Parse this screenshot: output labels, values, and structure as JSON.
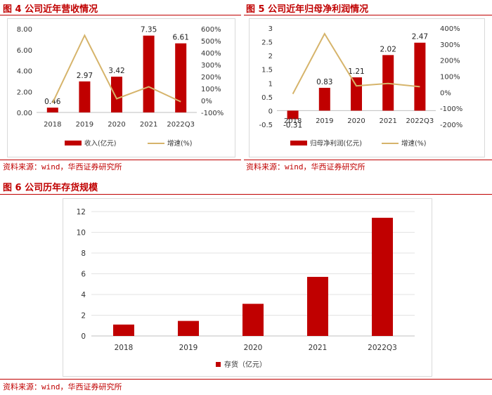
{
  "figures": [
    {
      "title": "图 4 公司近年营收情况",
      "source": "资料来源：wind，华西证券研究所"
    },
    {
      "title": "图 5 公司近年归母净利润情况",
      "source": "资料来源：wind，华西证券研究所"
    },
    {
      "title": "图 6 公司历年存货规模",
      "source": "资料来源：wind，华西证券研究所"
    }
  ],
  "colors": {
    "bar": "#c00000",
    "line": "#d6b46b",
    "accent": "#c00000"
  },
  "chart_data": [
    {
      "type": "bar",
      "categories": [
        "2018",
        "2019",
        "2020",
        "2021",
        "2022Q3"
      ],
      "series": [
        {
          "name": "收入(亿元)",
          "type": "bar",
          "axis": "left",
          "values": [
            0.46,
            2.97,
            3.42,
            7.35,
            6.61
          ],
          "labels": [
            "0.46",
            "2.97",
            "3.42",
            "7.35",
            "6.61"
          ]
        },
        {
          "name": "增速(%)",
          "type": "line",
          "axis": "right",
          "values": [
            -20,
            545,
            15,
            115,
            -10
          ]
        }
      ],
      "y_left": {
        "min": 0,
        "max": 8,
        "ticks": [
          "0.00",
          "2.00",
          "4.00",
          "6.00",
          "8.00"
        ]
      },
      "y_right": {
        "min": -100,
        "max": 600,
        "ticks": [
          "-100%",
          "0%",
          "100%",
          "200%",
          "300%",
          "400%",
          "500%",
          "600%"
        ]
      },
      "legend": "bottom",
      "grid": false
    },
    {
      "type": "bar",
      "categories": [
        "2018",
        "2019",
        "2020",
        "2021",
        "2022Q3"
      ],
      "series": [
        {
          "name": "归母净利润(亿元)",
          "type": "bar",
          "axis": "left",
          "values": [
            -0.31,
            0.83,
            1.21,
            2.02,
            2.47
          ],
          "labels": [
            "-0.31",
            "0.83",
            "1.21",
            "2.02",
            "2.47"
          ]
        },
        {
          "name": "增速(%)",
          "type": "line",
          "axis": "right",
          "values": [
            -10,
            365,
            40,
            55,
            35
          ]
        }
      ],
      "y_left": {
        "min": -0.5,
        "max": 3,
        "ticks": [
          "-0.5",
          "0",
          "0.5",
          "1",
          "1.5",
          "2",
          "2.5",
          "3"
        ]
      },
      "y_right": {
        "min": -200,
        "max": 400,
        "ticks": [
          "-200%",
          "-100%",
          "0%",
          "100%",
          "200%",
          "300%",
          "400%"
        ]
      },
      "legend": "bottom",
      "grid": false
    },
    {
      "type": "bar",
      "categories": [
        "2018",
        "2019",
        "2020",
        "2021",
        "2022Q3"
      ],
      "series": [
        {
          "name": "存货（亿元）",
          "values": [
            1.1,
            1.45,
            3.1,
            5.7,
            11.4
          ]
        }
      ],
      "y_left": {
        "min": 0,
        "max": 12,
        "ticks": [
          "0",
          "2",
          "4",
          "6",
          "8",
          "10",
          "12"
        ]
      },
      "legend": "bottom",
      "grid": true
    }
  ]
}
